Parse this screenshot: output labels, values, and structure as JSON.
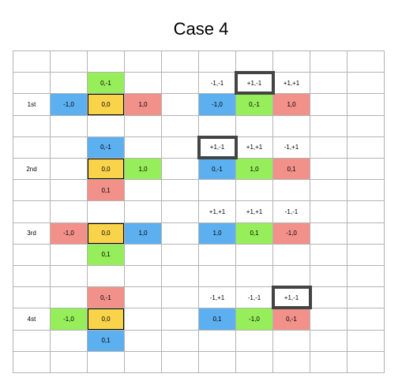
{
  "title": "Case 4",
  "colors": {
    "blue": "#5db0f0",
    "green": "#96ee5a",
    "red": "#f1918a",
    "yellow": "#f9d44b",
    "grid_line": "#b3b3b3",
    "highlight_border": "#444444"
  },
  "grid": {
    "rows": 15,
    "cols": 10
  },
  "cells": [
    {
      "r": 1,
      "c": 2,
      "text": "0,-1",
      "color": "green"
    },
    {
      "r": 1,
      "c": 5,
      "text": "-1,-1"
    },
    {
      "r": 1,
      "c": 6,
      "text": "+1,-1"
    },
    {
      "r": 1,
      "c": 7,
      "text": "+1,+1"
    },
    {
      "r": 2,
      "c": 0,
      "text": "1st"
    },
    {
      "r": 2,
      "c": 1,
      "text": "-1,0",
      "color": "blue"
    },
    {
      "r": 2,
      "c": 2,
      "text": "0,0",
      "color": "yellow",
      "outline": true
    },
    {
      "r": 2,
      "c": 3,
      "text": "1,0",
      "color": "red"
    },
    {
      "r": 2,
      "c": 5,
      "text": "-1,0",
      "color": "blue"
    },
    {
      "r": 2,
      "c": 6,
      "text": "0,-1",
      "color": "green"
    },
    {
      "r": 2,
      "c": 7,
      "text": "1,0",
      "color": "red"
    },
    {
      "r": 4,
      "c": 2,
      "text": "0,-1",
      "color": "blue"
    },
    {
      "r": 4,
      "c": 5,
      "text": "+1,-1"
    },
    {
      "r": 4,
      "c": 6,
      "text": "+1,+1"
    },
    {
      "r": 4,
      "c": 7,
      "text": "-1,+1"
    },
    {
      "r": 5,
      "c": 0,
      "text": "2nd"
    },
    {
      "r": 5,
      "c": 2,
      "text": "0,0",
      "color": "yellow",
      "outline": true
    },
    {
      "r": 5,
      "c": 3,
      "text": "1,0",
      "color": "green"
    },
    {
      "r": 5,
      "c": 5,
      "text": "0,-1",
      "color": "blue"
    },
    {
      "r": 5,
      "c": 6,
      "text": "1,0",
      "color": "green"
    },
    {
      "r": 5,
      "c": 7,
      "text": "0,1",
      "color": "red"
    },
    {
      "r": 6,
      "c": 2,
      "text": "0,1",
      "color": "red"
    },
    {
      "r": 7,
      "c": 5,
      "text": "+1,+1"
    },
    {
      "r": 7,
      "c": 6,
      "text": "+1,+1"
    },
    {
      "r": 7,
      "c": 7,
      "text": "-1,-1"
    },
    {
      "r": 8,
      "c": 0,
      "text": "3rd"
    },
    {
      "r": 8,
      "c": 1,
      "text": "-1,0",
      "color": "red"
    },
    {
      "r": 8,
      "c": 2,
      "text": "0,0",
      "color": "yellow",
      "outline": true
    },
    {
      "r": 8,
      "c": 3,
      "text": "1,0",
      "color": "blue"
    },
    {
      "r": 8,
      "c": 5,
      "text": "1,0",
      "color": "blue"
    },
    {
      "r": 8,
      "c": 6,
      "text": "0,1",
      "color": "green"
    },
    {
      "r": 8,
      "c": 7,
      "text": "-1,0",
      "color": "red"
    },
    {
      "r": 9,
      "c": 2,
      "text": "0,1",
      "color": "green"
    },
    {
      "r": 11,
      "c": 2,
      "text": "0,-1",
      "color": "red"
    },
    {
      "r": 11,
      "c": 5,
      "text": "-1,+1"
    },
    {
      "r": 11,
      "c": 6,
      "text": "-1,-1"
    },
    {
      "r": 11,
      "c": 7,
      "text": "+1,-1"
    },
    {
      "r": 12,
      "c": 0,
      "text": "4st"
    },
    {
      "r": 12,
      "c": 1,
      "text": "-1,0",
      "color": "green"
    },
    {
      "r": 12,
      "c": 2,
      "text": "0,0",
      "color": "yellow",
      "outline": true
    },
    {
      "r": 12,
      "c": 5,
      "text": "0,1",
      "color": "blue"
    },
    {
      "r": 12,
      "c": 6,
      "text": "-1,0",
      "color": "green"
    },
    {
      "r": 12,
      "c": 7,
      "text": "0,-1",
      "color": "red"
    },
    {
      "r": 13,
      "c": 2,
      "text": "0,1",
      "color": "blue"
    }
  ],
  "highlights": [
    {
      "r": 1,
      "c": 6
    },
    {
      "r": 4,
      "c": 5
    },
    {
      "r": 11,
      "c": 7
    }
  ]
}
